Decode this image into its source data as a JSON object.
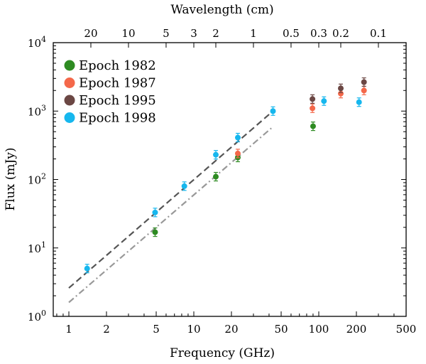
{
  "chart_data": {
    "type": "scatter",
    "title": "",
    "xlabel": "Frequency (GHz)",
    "ylabel": "Flux (mJy)",
    "top_xlabel": "Wavelength (cm)",
    "xscale": "log",
    "yscale": "log",
    "xlim": [
      0.75,
      500
    ],
    "ylim": [
      1,
      10000
    ],
    "x_ticks": [
      1,
      2,
      5,
      10,
      20,
      50,
      100,
      200,
      500
    ],
    "x_tick_labels": [
      "1",
      "2",
      "5",
      "10",
      "20",
      "50",
      "100",
      "200",
      "500"
    ],
    "y_ticks": [
      1,
      10,
      100,
      1000,
      10000
    ],
    "y_tick_base": "10",
    "y_tick_exponents": [
      "0",
      "1",
      "2",
      "3",
      "4"
    ],
    "top_ticks_cm": [
      20,
      10,
      5,
      3,
      2,
      1,
      0.5,
      0.3,
      0.2,
      0.1
    ],
    "top_tick_labels": [
      "20",
      "10",
      "5",
      "3",
      "2",
      "1",
      "0.5",
      "0.3",
      "0.2",
      "0.1"
    ],
    "legend_position": "top-left",
    "grid": false,
    "series": [
      {
        "name": "Epoch 1982",
        "color": "#2e8b22",
        "points": [
          [
            4.9,
            17
          ],
          [
            15,
            110
          ],
          [
            22.5,
            210
          ],
          [
            90,
            600
          ]
        ]
      },
      {
        "name": "Epoch 1987",
        "color": "#f4684a",
        "points": [
          [
            22.5,
            240
          ],
          [
            89,
            1100
          ],
          [
            150,
            1800
          ],
          [
            230,
            2000
          ]
        ]
      },
      {
        "name": "Epoch 1995",
        "color": "#6b4744",
        "points": [
          [
            89,
            1500
          ],
          [
            150,
            2150
          ],
          [
            230,
            2650
          ]
        ]
      },
      {
        "name": "Epoch 1998",
        "color": "#16b7ee",
        "points": [
          [
            1.4,
            5
          ],
          [
            4.9,
            33
          ],
          [
            8.4,
            80
          ],
          [
            15,
            230
          ],
          [
            22.5,
            410
          ],
          [
            43,
            1000
          ],
          [
            110,
            1400
          ],
          [
            210,
            1350
          ]
        ]
      }
    ],
    "fit_lines": [
      {
        "style": "dashed",
        "color": "#555555",
        "x": [
          1,
          43
        ],
        "y": [
          2.6,
          1000
        ]
      },
      {
        "style": "dashdot",
        "color": "#999999",
        "x": [
          1,
          43
        ],
        "y": [
          1.6,
          590
        ]
      }
    ]
  }
}
